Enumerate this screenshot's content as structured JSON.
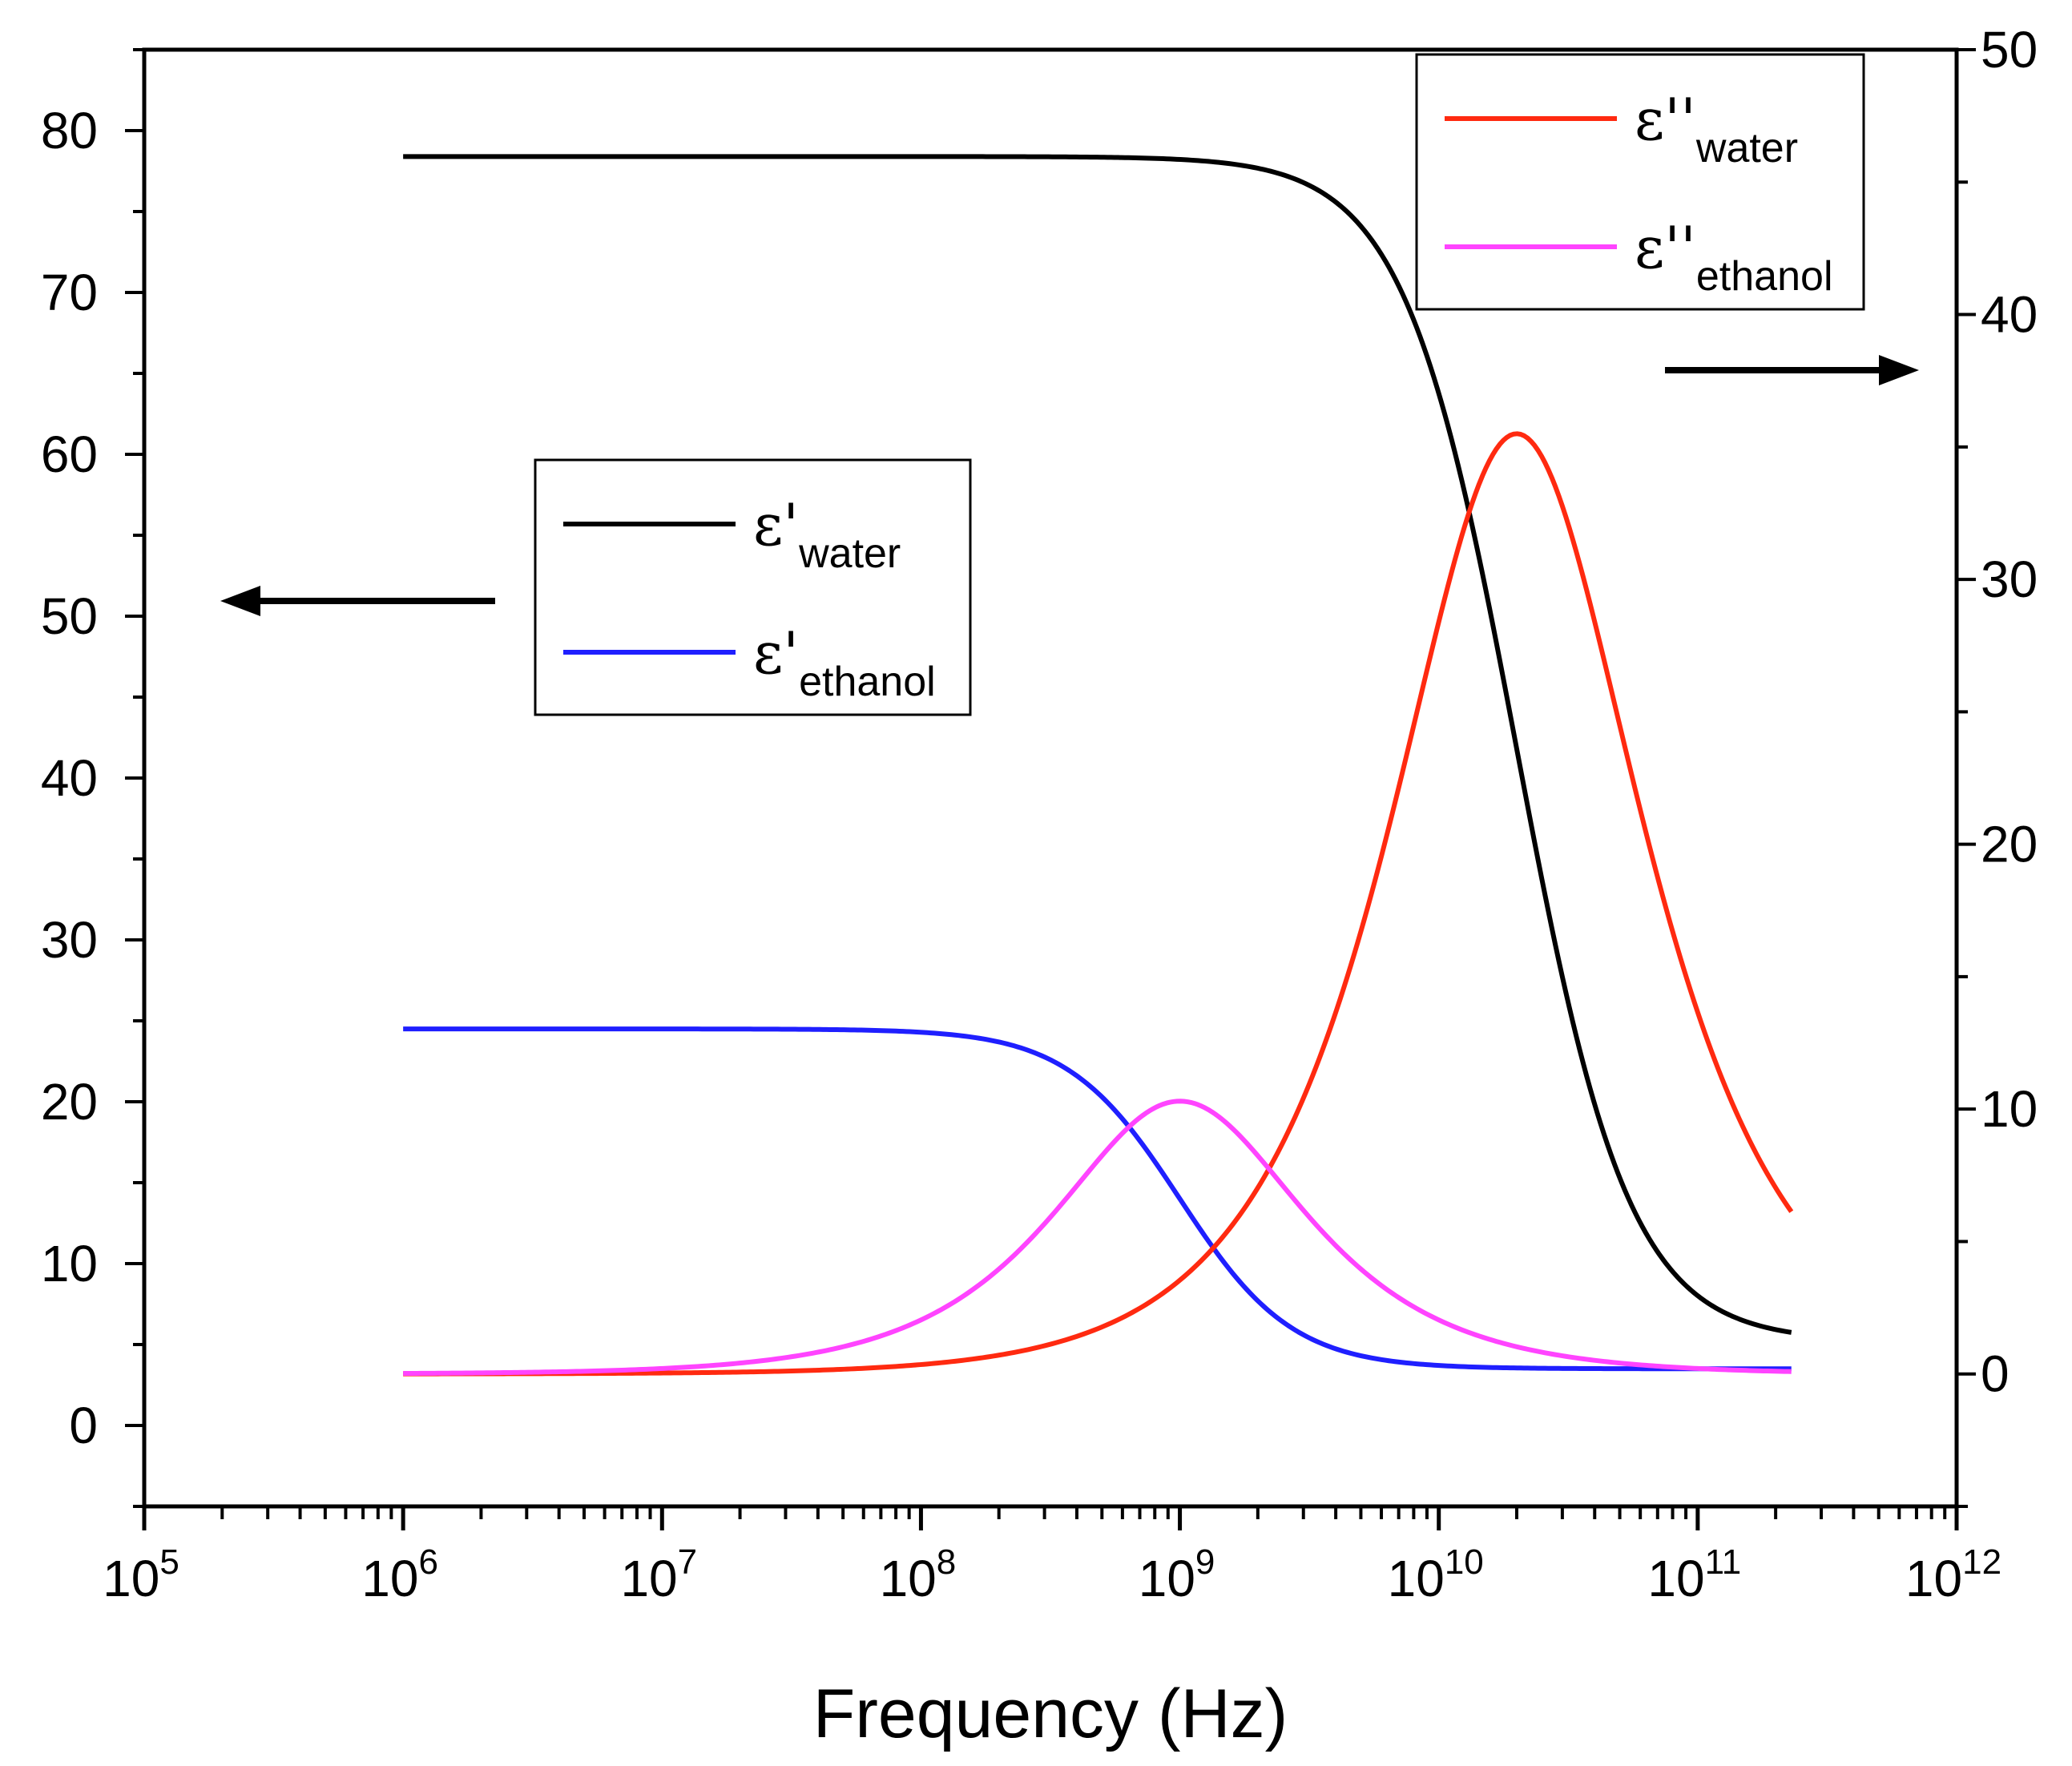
{
  "chart_data": {
    "type": "line",
    "title": "",
    "xlabel": "Frequency (Hz)",
    "x_scale": "log10",
    "xlim_exp": [
      5,
      12
    ],
    "x_tick_labels": [
      {
        "base": "10",
        "exp": "5"
      },
      {
        "base": "10",
        "exp": "6"
      },
      {
        "base": "10",
        "exp": "7"
      },
      {
        "base": "10",
        "exp": "8"
      },
      {
        "base": "10",
        "exp": "9"
      },
      {
        "base": "10",
        "exp": "10"
      },
      {
        "base": "10",
        "exp": "11"
      },
      {
        "base": "10",
        "exp": "12"
      }
    ],
    "y_left": {
      "ylabel": "",
      "ylim": [
        -5,
        85
      ],
      "ticks": [
        "0",
        "10",
        "20",
        "30",
        "40",
        "50",
        "60",
        "70",
        "80"
      ],
      "tick_values": [
        0,
        10,
        20,
        30,
        40,
        50,
        60,
        70,
        80
      ]
    },
    "y_right": {
      "ylabel": "",
      "ylim": [
        -5,
        50
      ],
      "ticks": [
        "0",
        "10",
        "20",
        "30",
        "40",
        "50"
      ],
      "tick_values": [
        0,
        10,
        20,
        30,
        40,
        50
      ]
    },
    "series": [
      {
        "name": "ε'water",
        "symbol": "ε'",
        "subscript": "water",
        "axis": "left",
        "color": "#000000",
        "model": "debye_real",
        "eps_static": 78.4,
        "eps_inf": 5.2,
        "relax_freq_hz": 20000000000.0,
        "x_range_hz": [
          1000000.0,
          230000000000.0
        ]
      },
      {
        "name": "ε'ethanol",
        "symbol": "ε'",
        "subscript": "ethanol",
        "axis": "left",
        "color": "#1f1fff",
        "model": "debye_real",
        "eps_static": 24.5,
        "eps_inf": 3.5,
        "relax_freq_hz": 1000000000.0,
        "x_range_hz": [
          1000000.0,
          230000000000.0
        ]
      },
      {
        "name": "ε''water",
        "symbol": "ε''",
        "subscript": "water",
        "axis": "right",
        "color": "#ff2a10",
        "model": "debye_imag",
        "delta_eps": 71.0,
        "relax_freq_hz": 20000000000.0,
        "x_range_hz": [
          1000000.0,
          230000000000.0
        ]
      },
      {
        "name": "ε''ethanol",
        "symbol": "ε''",
        "subscript": "ethanol",
        "axis": "right",
        "color": "#ff44ff",
        "model": "debye_imag",
        "delta_eps": 20.6,
        "relax_freq_hz": 1000000000.0,
        "x_range_hz": [
          1000000.0,
          230000000000.0
        ]
      }
    ],
    "legends": [
      {
        "placement": "center-left",
        "entries": [
          0,
          1
        ]
      },
      {
        "placement": "top-right",
        "entries": [
          2,
          3
        ]
      }
    ],
    "annotations": [
      {
        "type": "arrow",
        "direction": "left",
        "meaning": "curves read on left axis"
      },
      {
        "type": "arrow",
        "direction": "right",
        "meaning": "curves read on right axis"
      }
    ],
    "grid": false
  }
}
